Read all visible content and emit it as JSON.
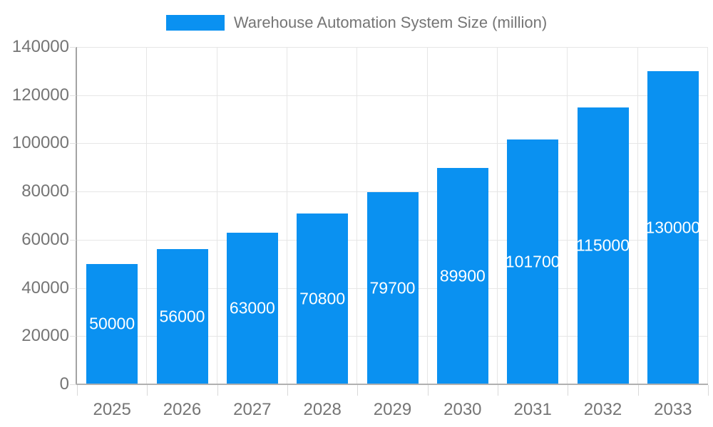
{
  "legend": {
    "label": "Warehouse Automation System Size (million)"
  },
  "chart_data": {
    "type": "bar",
    "title": "Warehouse Automation System Size (million)",
    "categories": [
      "2025",
      "2026",
      "2027",
      "2028",
      "2029",
      "2030",
      "2031",
      "2032",
      "2033"
    ],
    "values": [
      50000,
      56000,
      63000,
      70800,
      79700,
      89900,
      101700,
      115000,
      130000
    ],
    "value_labels": [
      "50000",
      "56000",
      "63000",
      "70800",
      "79700",
      "89900",
      "101700",
      "115000",
      "130000"
    ],
    "xlabel": "",
    "ylabel": "",
    "ylim": [
      0,
      140000
    ],
    "ytick_step": 20000,
    "yticks": [
      0,
      20000,
      40000,
      60000,
      80000,
      100000,
      120000,
      140000
    ],
    "grid": true,
    "legend_position": "top-center"
  },
  "colors": {
    "bar": "#0A91F1",
    "grid": "#E6E6E6",
    "axis_line": "#A3A3A3",
    "tick": "#D9D9D9",
    "text": "#757575",
    "value_label": "#FFFFFF",
    "background": "#FFFFFF"
  }
}
